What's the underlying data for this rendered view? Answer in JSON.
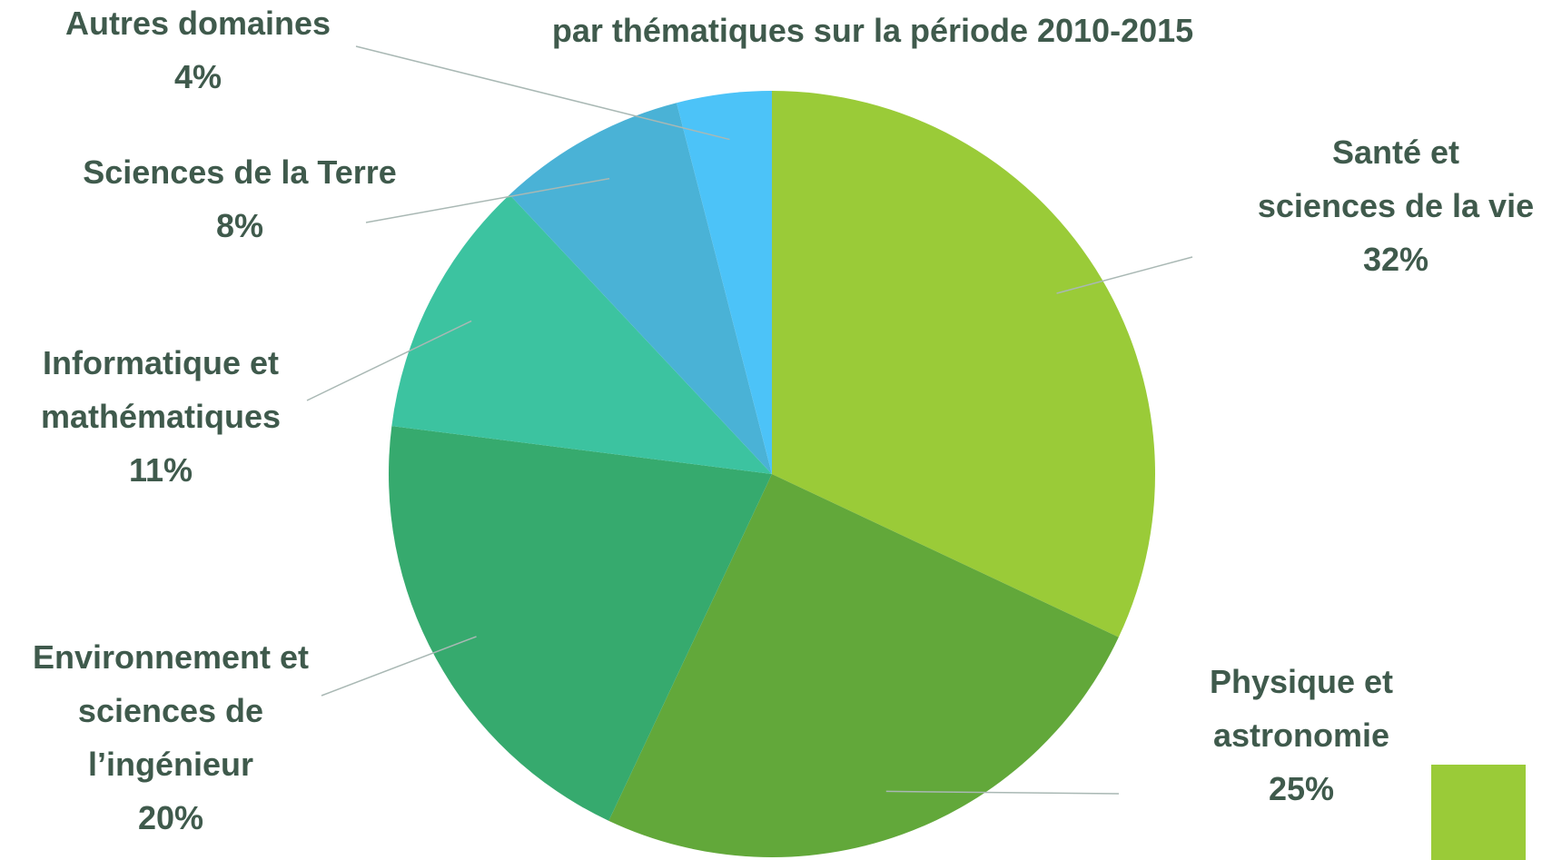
{
  "chart_data": {
    "type": "pie",
    "title": "par thématiques sur la période 2010-2015",
    "categories": [
      "Santé et\nsciences de la vie",
      "Physique et\nastronomie",
      "Environnement et\nsciences de\nl’ingénieur",
      "Informatique et\nmathématiques",
      "Sciences de la Terre",
      "Autres domaines"
    ],
    "values": [
      32,
      25,
      20,
      11,
      8,
      4
    ],
    "value_labels": [
      "32%",
      "25%",
      "20%",
      "11%",
      "8%",
      "4%"
    ],
    "colors": [
      "#9acb38",
      "#62a83a",
      "#36aa6e",
      "#3cc3a0",
      "#4ab2d6",
      "#4cc3f8"
    ]
  }
}
